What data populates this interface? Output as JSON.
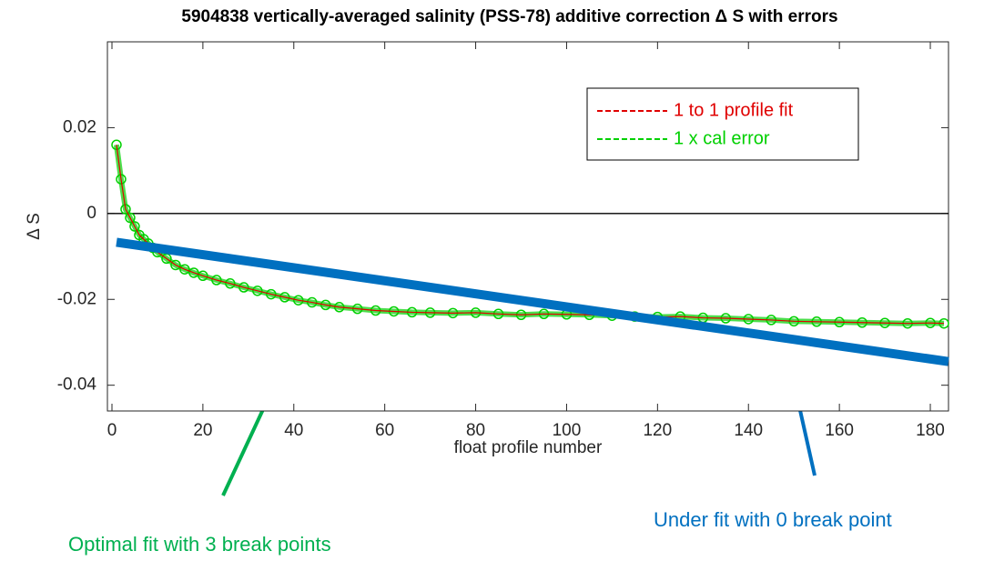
{
  "chart_data": {
    "type": "line",
    "title": "5904838 vertically-averaged salinity (PSS-78) additive correction Δ S with errors",
    "x_label": "float profile number",
    "y_label": "Δ S",
    "xlim": [
      -1,
      184
    ],
    "ylim": [
      -0.046,
      0.04
    ],
    "xticks": [
      0,
      20,
      40,
      60,
      80,
      100,
      120,
      140,
      160,
      180
    ],
    "yticks": [
      -0.04,
      -0.02,
      0,
      0.02
    ],
    "reference_line": 0,
    "legend": "upper right",
    "x": [
      1,
      2,
      3,
      4,
      5,
      6,
      7,
      8,
      9,
      10,
      12,
      14,
      16,
      18,
      20,
      23,
      26,
      29,
      32,
      35,
      38,
      41,
      44,
      47,
      50,
      54,
      58,
      62,
      66,
      70,
      75,
      80,
      85,
      90,
      95,
      100,
      105,
      110,
      115,
      120,
      125,
      130,
      135,
      140,
      145,
      150,
      155,
      160,
      165,
      170,
      175,
      180,
      183
    ],
    "series": [
      {
        "name": "1 to 1 profile fit",
        "color": "#e00000",
        "values": [
          0.016,
          0.008,
          0.001,
          -0.001,
          -0.003,
          -0.005,
          -0.006,
          -0.007,
          -0.008,
          -0.009,
          -0.0105,
          -0.012,
          -0.013,
          -0.0138,
          -0.0145,
          -0.0155,
          -0.0163,
          -0.0172,
          -0.018,
          -0.0188,
          -0.0195,
          -0.0202,
          -0.0207,
          -0.0213,
          -0.0218,
          -0.0222,
          -0.0226,
          -0.0228,
          -0.023,
          -0.0231,
          -0.0232,
          -0.0231,
          -0.0234,
          -0.0236,
          -0.0234,
          -0.0235,
          -0.0236,
          -0.0238,
          -0.024,
          -0.0241,
          -0.024,
          -0.0243,
          -0.0244,
          -0.0246,
          -0.0248,
          -0.0251,
          -0.0252,
          -0.0253,
          -0.0254,
          -0.0255,
          -0.0256,
          -0.0255,
          -0.0256
        ]
      },
      {
        "name": "1 x cal error",
        "color": "#00d000",
        "values": [
          0.016,
          0.008,
          0.001,
          -0.001,
          -0.003,
          -0.005,
          -0.006,
          -0.007,
          -0.008,
          -0.009,
          -0.0105,
          -0.012,
          -0.013,
          -0.0138,
          -0.0145,
          -0.0155,
          -0.0163,
          -0.0172,
          -0.018,
          -0.0188,
          -0.0195,
          -0.0202,
          -0.0207,
          -0.0213,
          -0.0218,
          -0.0222,
          -0.0226,
          -0.0228,
          -0.023,
          -0.0231,
          -0.0232,
          -0.0231,
          -0.0234,
          -0.0236,
          -0.0234,
          -0.0235,
          -0.0236,
          -0.0238,
          -0.024,
          -0.0241,
          -0.024,
          -0.0243,
          -0.0244,
          -0.0246,
          -0.0248,
          -0.0251,
          -0.0252,
          -0.0253,
          -0.0254,
          -0.0255,
          -0.0256,
          -0.0255,
          -0.0256
        ]
      }
    ],
    "fit_line": {
      "color": "#0070c0",
      "x": [
        1,
        184
      ],
      "y": [
        -0.0067,
        -0.0345
      ]
    },
    "annotations": [
      {
        "text": "Optimal fit with 3 break points",
        "color": "#00b050"
      },
      {
        "text": "Under fit with 0 break point",
        "color": "#0070c0"
      }
    ]
  }
}
